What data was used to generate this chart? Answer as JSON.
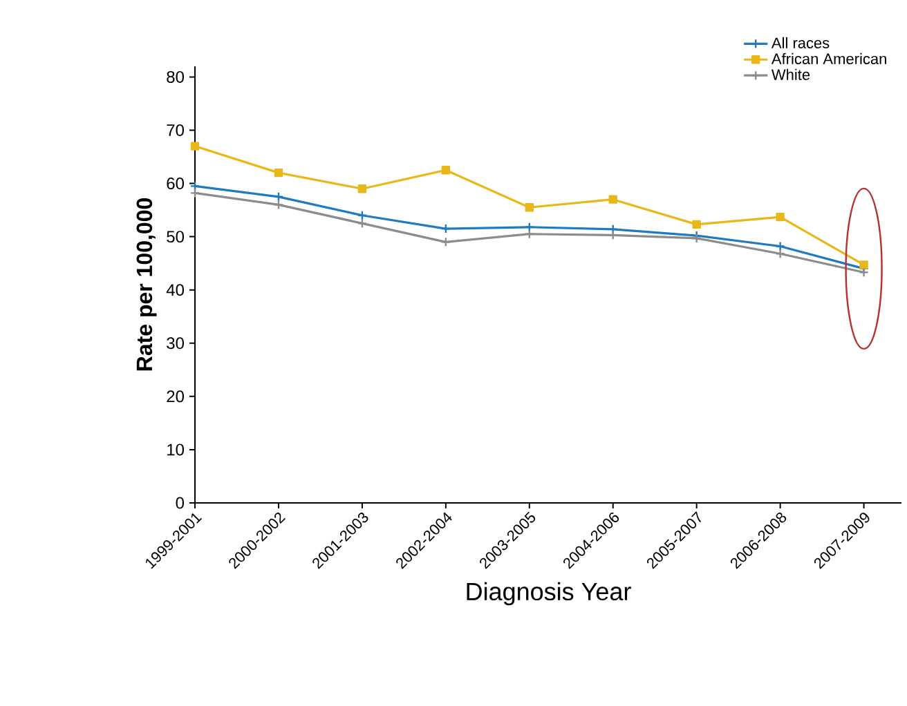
{
  "chart_data": {
    "type": "line",
    "xlabel": "Diagnosis Year",
    "ylabel": "Rate per 100,000",
    "categories": [
      "1999-2001",
      "2000-2002",
      "2001-2003",
      "2002-2004",
      "2003-2005",
      "2004-2006",
      "2005-2007",
      "2006-2008",
      "2007-2009"
    ],
    "series": [
      {
        "name": "All races",
        "color": "#1f7ac0",
        "marker": "cross",
        "values": [
          59.5,
          57.5,
          54,
          51.5,
          51.8,
          51.4,
          50.2,
          48.2,
          44
        ]
      },
      {
        "name": "African American",
        "color": "#e8b818",
        "marker": "square",
        "values": [
          67,
          62,
          59,
          62.5,
          55.5,
          57,
          52.3,
          53.7,
          44.7
        ]
      },
      {
        "name": "White",
        "color": "#8c8c8c",
        "marker": "cross",
        "values": [
          58.2,
          56,
          52.5,
          49,
          50.5,
          50.3,
          49.7,
          46.8,
          43.3
        ]
      }
    ],
    "ylim": [
      0,
      82
    ],
    "yticks": [
      0,
      10,
      20,
      30,
      40,
      50,
      60,
      70,
      80
    ],
    "grid": false,
    "legend": "top right",
    "line_style": "solid"
  }
}
